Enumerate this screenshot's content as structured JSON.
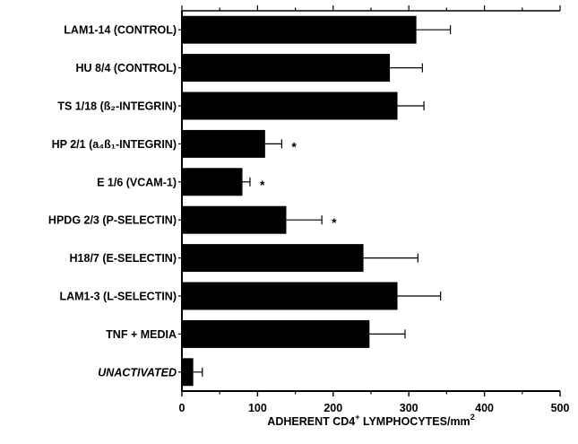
{
  "chart_data": {
    "type": "bar",
    "orientation": "horizontal",
    "categories": [
      "LAM1-14 (CONTROL)",
      "HU 8/4 (CONTROL)",
      "TS 1/18 (ß₂-INTEGRIN)",
      "HP 2/1 (a₄ß₁-INTEGRIN)",
      "E 1/6  (VCAM-1)",
      "HPDG 2/3 (P-SELECTIN)",
      "H18/7 (E-SELECTIN)",
      "LAM1-3 (L-SELECTIN)",
      "TNF +  MEDIA",
      "UNACTIVATED"
    ],
    "values": [
      310,
      275,
      285,
      110,
      80,
      138,
      240,
      285,
      248,
      15
    ],
    "errors": [
      45,
      43,
      35,
      22,
      10,
      47,
      72,
      57,
      47,
      12
    ],
    "significance": [
      "",
      "",
      "",
      "*",
      "*",
      "*",
      "",
      "",
      "",
      ""
    ],
    "italic_categories": [
      "UNACTIVATED"
    ],
    "xlabel_parts": [
      "ADHERENT  CD4",
      "+",
      " LYMPHOCYTES/mm",
      "2"
    ],
    "ylabel": "",
    "title": "",
    "xlim": [
      0,
      500
    ],
    "xticks": [
      0,
      100,
      200,
      300,
      400,
      500
    ],
    "grid": false,
    "bar_color": "#000000"
  }
}
